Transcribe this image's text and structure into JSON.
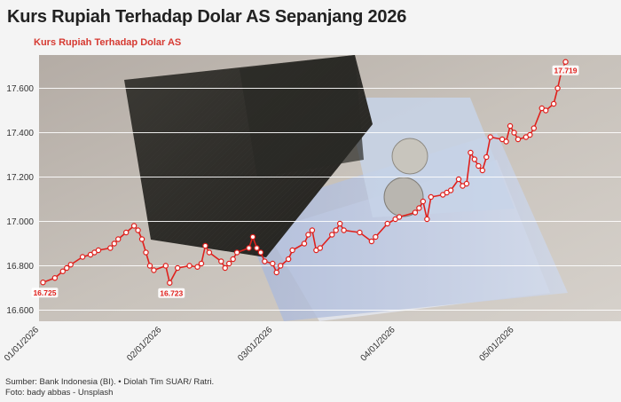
{
  "header": {
    "title": "Kurs Rupiah Terhadap Dolar AS Sepanjang 2026",
    "subtitle": "Kurs Rupiah Terhadap Dolar AS"
  },
  "footer": {
    "source": "Sumber: Bank Indonesia (BI). • Diolah Tim SUAR/ Ratri.",
    "photo": "Foto: bady abbas - Unsplash"
  },
  "colors": {
    "line": "#e0201c",
    "subtitle": "#d63a32",
    "grid": "#ffffff"
  },
  "chart_data": {
    "type": "line",
    "title": "Kurs Rupiah Terhadap Dolar AS",
    "xlabel": "",
    "ylabel": "",
    "ylim": [
      16550,
      17750
    ],
    "yticks": [
      16600,
      16800,
      17000,
      17200,
      17400,
      17600
    ],
    "ytick_labels": [
      "16.600",
      "16.800",
      "17.000",
      "17.200",
      "17.400",
      "17.600"
    ],
    "xlim": [
      "2026-01-01",
      "2026-05-28"
    ],
    "xticks": [
      "2026-01-01",
      "2026-02-01",
      "2026-03-01",
      "2026-04-01",
      "2026-05-01"
    ],
    "xtick_labels": [
      "01/01/2026",
      "02/01/2026",
      "03/01/2026",
      "04/01/2026",
      "05/01/2026"
    ],
    "grid": true,
    "background_image": "photo of rupiah banknotes, coins and passport",
    "series": [
      {
        "values": [
          [
            "2026-01-02",
            16725
          ],
          [
            "2026-01-05",
            16745
          ],
          [
            "2026-01-07",
            16775
          ],
          [
            "2026-01-08",
            16790
          ],
          [
            "2026-01-09",
            16805
          ],
          [
            "2026-01-12",
            16840
          ],
          [
            "2026-01-14",
            16850
          ],
          [
            "2026-01-15",
            16860
          ],
          [
            "2026-01-16",
            16870
          ],
          [
            "2026-01-19",
            16880
          ],
          [
            "2026-01-20",
            16900
          ],
          [
            "2026-01-21",
            16920
          ],
          [
            "2026-01-23",
            16950
          ],
          [
            "2026-01-25",
            16980
          ],
          [
            "2026-01-26",
            16960
          ],
          [
            "2026-01-27",
            16920
          ],
          [
            "2026-01-28",
            16860
          ],
          [
            "2026-01-29",
            16800
          ],
          [
            "2026-01-30",
            16780
          ],
          [
            "2026-02-02",
            16800
          ],
          [
            "2026-02-03",
            16723
          ],
          [
            "2026-02-05",
            16790
          ],
          [
            "2026-02-08",
            16800
          ],
          [
            "2026-02-10",
            16795
          ],
          [
            "2026-02-11",
            16810
          ],
          [
            "2026-02-12",
            16890
          ],
          [
            "2026-02-13",
            16860
          ],
          [
            "2026-02-16",
            16820
          ],
          [
            "2026-02-17",
            16790
          ],
          [
            "2026-02-18",
            16810
          ],
          [
            "2026-02-19",
            16830
          ],
          [
            "2026-02-20",
            16860
          ],
          [
            "2026-02-23",
            16880
          ],
          [
            "2026-02-24",
            16930
          ],
          [
            "2026-02-25",
            16880
          ],
          [
            "2026-02-26",
            16860
          ],
          [
            "2026-02-27",
            16820
          ],
          [
            "2026-03-01",
            16810
          ],
          [
            "2026-03-02",
            16770
          ],
          [
            "2026-03-03",
            16800
          ],
          [
            "2026-03-05",
            16830
          ],
          [
            "2026-03-06",
            16870
          ],
          [
            "2026-03-09",
            16900
          ],
          [
            "2026-03-10",
            16940
          ],
          [
            "2026-03-11",
            16960
          ],
          [
            "2026-03-12",
            16870
          ],
          [
            "2026-03-13",
            16880
          ],
          [
            "2026-03-16",
            16940
          ],
          [
            "2026-03-17",
            16960
          ],
          [
            "2026-03-18",
            16990
          ],
          [
            "2026-03-19",
            16960
          ],
          [
            "2026-03-23",
            16950
          ],
          [
            "2026-03-26",
            16910
          ],
          [
            "2026-03-27",
            16930
          ],
          [
            "2026-03-30",
            16990
          ],
          [
            "2026-04-01",
            17010
          ],
          [
            "2026-04-02",
            17020
          ],
          [
            "2026-04-06",
            17040
          ],
          [
            "2026-04-07",
            17060
          ],
          [
            "2026-04-08",
            17090
          ],
          [
            "2026-04-09",
            17010
          ],
          [
            "2026-04-10",
            17110
          ],
          [
            "2026-04-13",
            17120
          ],
          [
            "2026-04-14",
            17130
          ],
          [
            "2026-04-15",
            17140
          ],
          [
            "2026-04-17",
            17190
          ],
          [
            "2026-04-18",
            17160
          ],
          [
            "2026-04-19",
            17170
          ],
          [
            "2026-04-20",
            17310
          ],
          [
            "2026-04-21",
            17280
          ],
          [
            "2026-04-22",
            17250
          ],
          [
            "2026-04-23",
            17230
          ],
          [
            "2026-04-24",
            17290
          ],
          [
            "2026-04-25",
            17380
          ],
          [
            "2026-04-28",
            17370
          ],
          [
            "2026-04-29",
            17360
          ],
          [
            "2026-04-30",
            17430
          ],
          [
            "2026-05-01",
            17400
          ],
          [
            "2026-05-02",
            17370
          ],
          [
            "2026-05-04",
            17380
          ],
          [
            "2026-05-05",
            17390
          ],
          [
            "2026-05-06",
            17420
          ],
          [
            "2026-05-08",
            17510
          ],
          [
            "2026-05-09",
            17500
          ],
          [
            "2026-05-11",
            17530
          ],
          [
            "2026-05-12",
            17600
          ],
          [
            "2026-05-13",
            17680
          ],
          [
            "2026-05-14",
            17719
          ]
        ]
      }
    ],
    "annotations": [
      {
        "date": "2026-01-02",
        "value": 16725,
        "label": "16.725"
      },
      {
        "date": "2026-02-03",
        "value": 16723,
        "label": "16.723"
      },
      {
        "date": "2026-05-14",
        "value": 17719,
        "label": "17.719"
      }
    ]
  }
}
